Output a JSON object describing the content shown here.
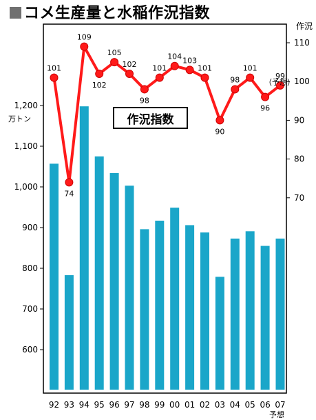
{
  "title": "コメ生産量と水稲作況指数",
  "chart_data": {
    "type": "bar+line",
    "categories": [
      "92",
      "93",
      "94",
      "95",
      "96",
      "97",
      "98",
      "99",
      "00",
      "01",
      "02",
      "03",
      "04",
      "05",
      "06",
      "07"
    ],
    "category_note": "予想",
    "series": [
      {
        "type": "bar",
        "axis": "left",
        "values": [
          1057,
          783,
          1198,
          1075,
          1034,
          1003,
          896,
          917,
          949,
          906,
          888,
          779,
          873,
          891,
          855,
          873
        ],
        "color": "#1aa6c9"
      },
      {
        "type": "line",
        "axis": "right",
        "name": "作況指数",
        "values": [
          101,
          74,
          109,
          102,
          105,
          102,
          98,
          101,
          104,
          103,
          101,
          90,
          98,
          101,
          96,
          99
        ],
        "last_label_note": "（予想）",
        "color": "#ff1a1a",
        "marker_color": "#cc0000"
      }
    ],
    "left_axis": {
      "unit": "万トン",
      "ylim": [
        500,
        1300
      ],
      "ticks": [
        "1,200",
        "1,100",
        "1,000",
        "900",
        "800",
        "700",
        "600"
      ],
      "tick_values": [
        1200,
        1100,
        1000,
        900,
        800,
        700,
        600
      ]
    },
    "right_axis": {
      "label": "作況",
      "ylim": [
        50,
        115
      ],
      "ticks": [
        "110",
        "100",
        "90",
        "80",
        "70"
      ],
      "tick_values": [
        110,
        100,
        90,
        80,
        70
      ]
    },
    "legend_label": "作況指数",
    "grid": false
  }
}
